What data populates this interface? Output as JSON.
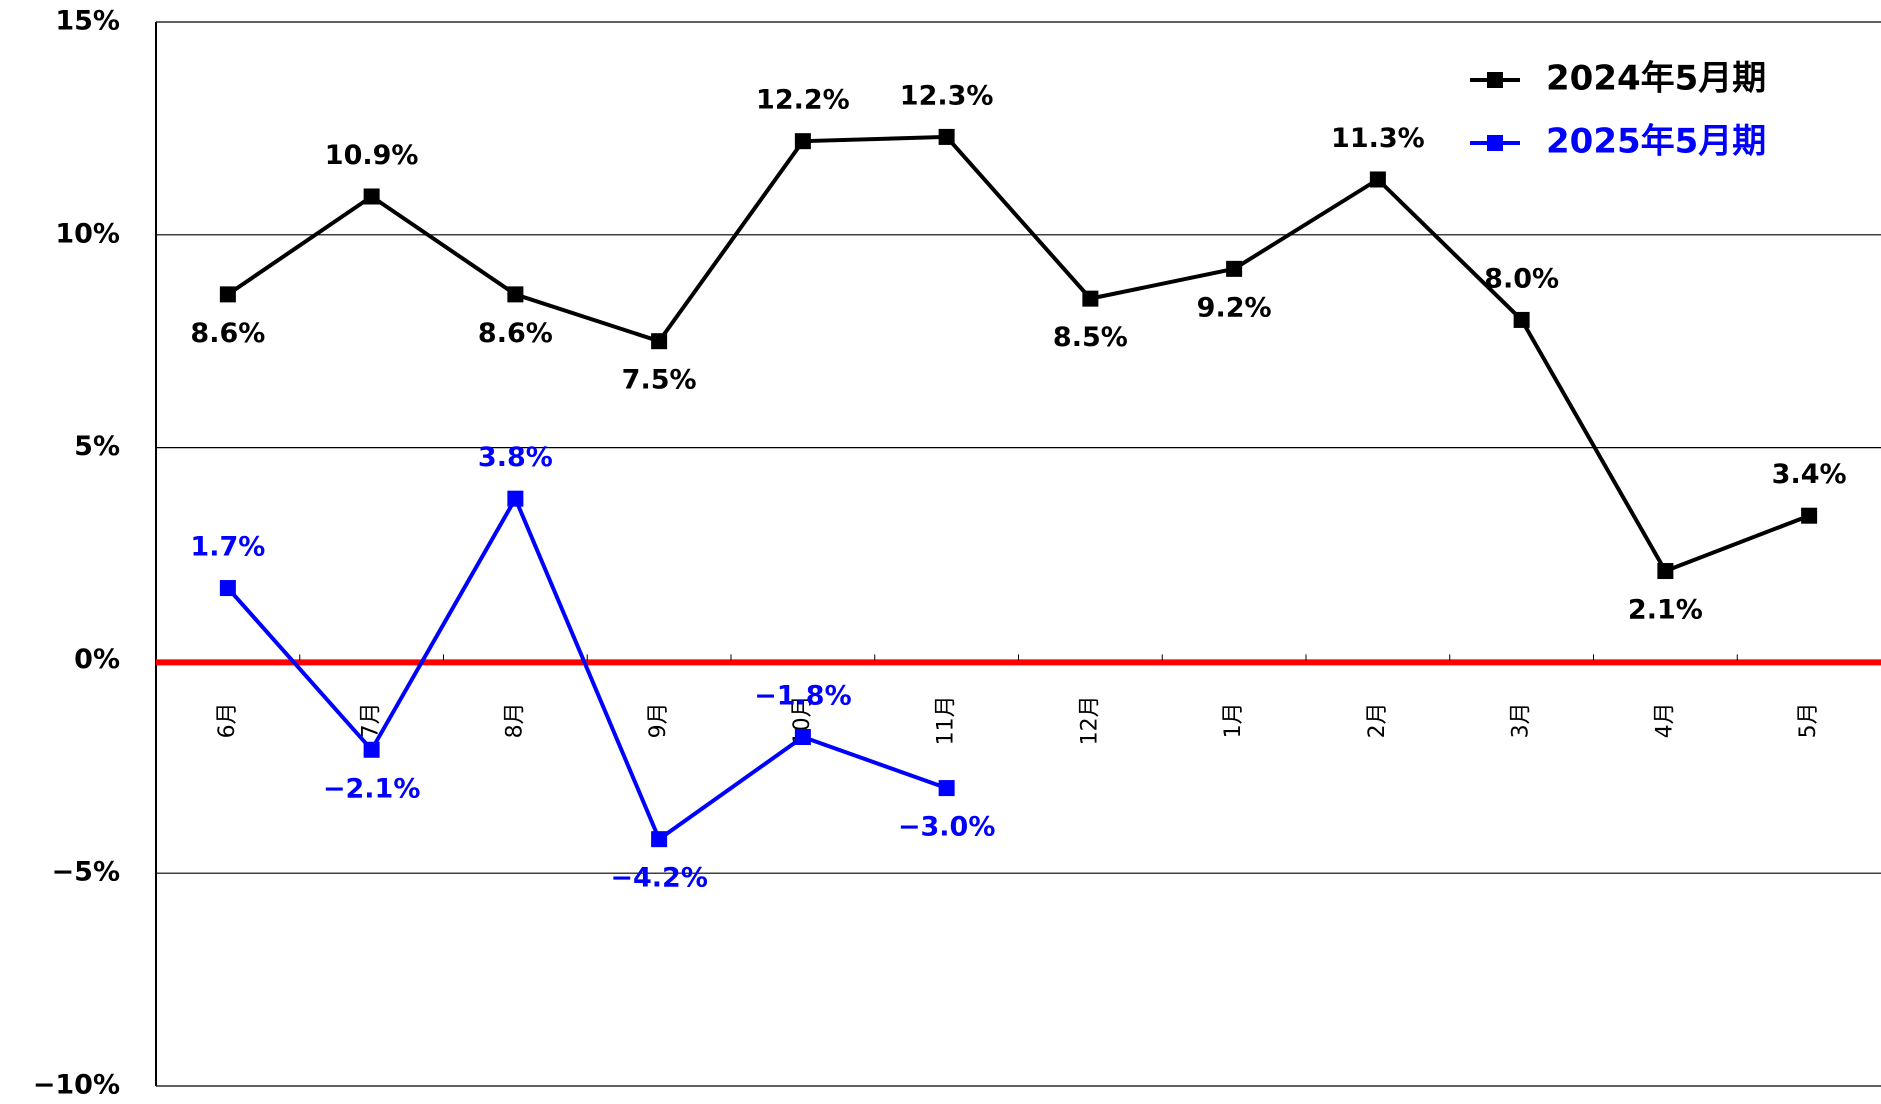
{
  "chart_data": {
    "type": "line",
    "categories": [
      "6月",
      "7月",
      "8月",
      "9月",
      "10月",
      "11月",
      "12月",
      "1月",
      "2月",
      "3月",
      "4月",
      "5月"
    ],
    "series": [
      {
        "name": "2024年5月期",
        "color": "#000000",
        "values": [
          8.6,
          10.9,
          8.6,
          7.5,
          12.2,
          12.3,
          8.5,
          9.2,
          11.3,
          8.0,
          2.1,
          3.4
        ],
        "value_labels": [
          "8.6%",
          "10.9%",
          "8.6%",
          "7.5%",
          "12.2%",
          "12.3%",
          "8.5%",
          "9.2%",
          "11.3%",
          "8.0%",
          "2.1%",
          "3.4%"
        ]
      },
      {
        "name": "2025年5月期",
        "color": "#0000ff",
        "values": [
          1.7,
          -2.1,
          3.8,
          -4.2,
          -1.8,
          -3.0,
          null,
          null,
          null,
          null,
          null,
          null
        ],
        "value_labels": [
          "1.7%",
          "−2.1%",
          "3.8%",
          "−4.2%",
          "−1.8%",
          "−3.0%",
          null,
          null,
          null,
          null,
          null,
          null
        ]
      }
    ],
    "ylim": [
      -10,
      15
    ],
    "yticks": [
      {
        "value": -10,
        "label": "−10%"
      },
      {
        "value": -5,
        "label": "−5%"
      },
      {
        "value": 0,
        "label": "0%"
      },
      {
        "value": 5,
        "label": "5%"
      },
      {
        "value": 10,
        "label": "10%"
      },
      {
        "value": 15,
        "label": "15%"
      }
    ],
    "grid": true,
    "zero_line_color": "#ff0000",
    "legend": "top-right"
  }
}
